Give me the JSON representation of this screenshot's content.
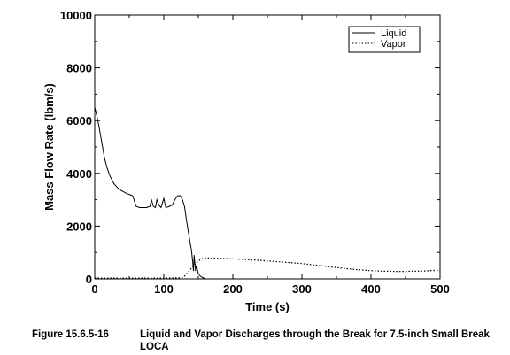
{
  "chart_data": {
    "type": "line",
    "title": "",
    "xlabel": "Time (s)",
    "ylabel": "Mass Flow Rate (lbm/s)",
    "xlim": [
      0,
      500
    ],
    "ylim": [
      0,
      10000
    ],
    "xticks": [
      0,
      100,
      200,
      300,
      400,
      500
    ],
    "yticks": [
      0,
      2000,
      4000,
      6000,
      8000,
      10000
    ],
    "xtick_labels": [
      "0",
      "100",
      "200",
      "300",
      "400",
      "500"
    ],
    "ytick_labels": [
      "0",
      "2000",
      "4000",
      "6000",
      "8000",
      "10000"
    ],
    "grid": false,
    "legend_position": "top-right",
    "series": [
      {
        "name": "Liquid",
        "style": "solid",
        "points": [
          [
            0,
            6500
          ],
          [
            3,
            6200
          ],
          [
            6,
            5800
          ],
          [
            10,
            5200
          ],
          [
            14,
            4600
          ],
          [
            18,
            4200
          ],
          [
            22,
            3900
          ],
          [
            28,
            3600
          ],
          [
            35,
            3400
          ],
          [
            45,
            3250
          ],
          [
            55,
            3150
          ],
          [
            60,
            2750
          ],
          [
            65,
            2700
          ],
          [
            70,
            2700
          ],
          [
            75,
            2700
          ],
          [
            80,
            2750
          ],
          [
            82,
            3000
          ],
          [
            85,
            2750
          ],
          [
            88,
            2700
          ],
          [
            90,
            3000
          ],
          [
            93,
            2800
          ],
          [
            96,
            2700
          ],
          [
            100,
            3050
          ],
          [
            103,
            2700
          ],
          [
            108,
            2750
          ],
          [
            112,
            2800
          ],
          [
            116,
            3000
          ],
          [
            120,
            3150
          ],
          [
            124,
            3150
          ],
          [
            127,
            3000
          ],
          [
            130,
            2750
          ],
          [
            133,
            2200
          ],
          [
            136,
            1700
          ],
          [
            138,
            1400
          ],
          [
            140,
            1100
          ],
          [
            142,
            600
          ],
          [
            143,
            300
          ],
          [
            144,
            900
          ],
          [
            146,
            300
          ],
          [
            147,
            500
          ],
          [
            150,
            200
          ],
          [
            153,
            100
          ],
          [
            156,
            50
          ],
          [
            160,
            0
          ],
          [
            165,
            0
          ],
          [
            200,
            0
          ],
          [
            300,
            0
          ],
          [
            400,
            0
          ],
          [
            500,
            0
          ]
        ]
      },
      {
        "name": "Vapor",
        "style": "dotted",
        "points": [
          [
            0,
            30
          ],
          [
            50,
            30
          ],
          [
            100,
            30
          ],
          [
            125,
            40
          ],
          [
            130,
            100
          ],
          [
            135,
            250
          ],
          [
            140,
            400
          ],
          [
            145,
            550
          ],
          [
            150,
            680
          ],
          [
            155,
            760
          ],
          [
            160,
            800
          ],
          [
            170,
            790
          ],
          [
            180,
            780
          ],
          [
            200,
            760
          ],
          [
            220,
            730
          ],
          [
            240,
            700
          ],
          [
            260,
            660
          ],
          [
            280,
            620
          ],
          [
            300,
            580
          ],
          [
            320,
            520
          ],
          [
            340,
            460
          ],
          [
            360,
            400
          ],
          [
            380,
            350
          ],
          [
            400,
            310
          ],
          [
            420,
            290
          ],
          [
            440,
            280
          ],
          [
            460,
            290
          ],
          [
            480,
            300
          ],
          [
            490,
            320
          ],
          [
            500,
            320
          ]
        ]
      }
    ]
  },
  "caption": {
    "number": "Figure 15.6.5-16",
    "text": "Liquid and Vapor Discharges through the Break for 7.5-inch Small Break LOCA"
  }
}
